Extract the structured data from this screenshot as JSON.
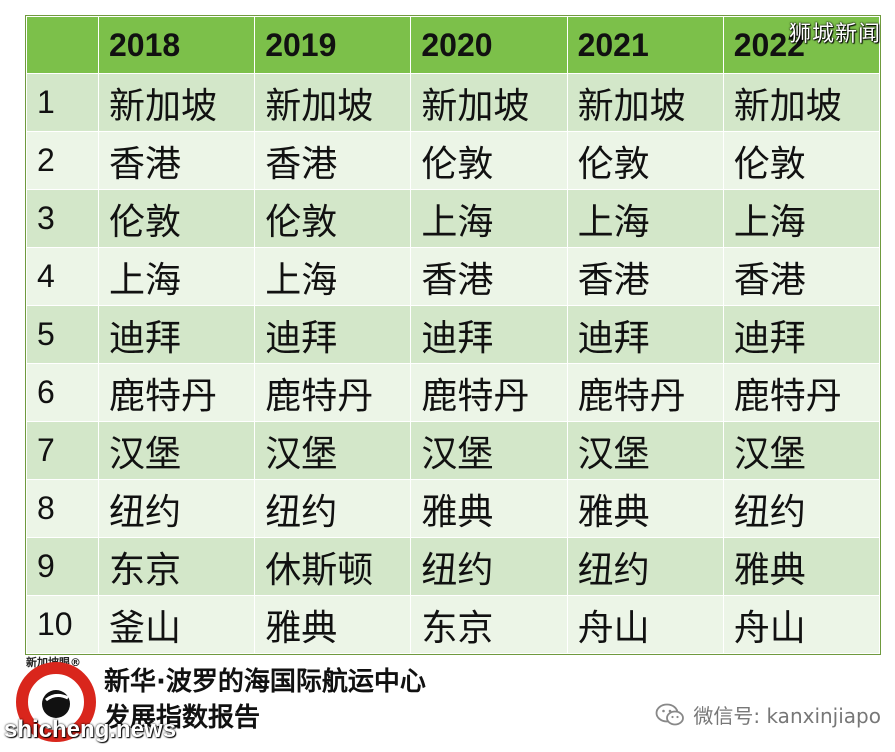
{
  "watermark": "狮城新闻",
  "table": {
    "headers": [
      "",
      "2018",
      "2019",
      "2020",
      "2021",
      "2022"
    ],
    "rows": [
      [
        "1",
        "新加坡",
        "新加坡",
        "新加坡",
        "新加坡",
        "新加坡"
      ],
      [
        "2",
        "香港",
        "香港",
        "伦敦",
        "伦敦",
        "伦敦"
      ],
      [
        "3",
        "伦敦",
        "伦敦",
        "上海",
        "上海",
        "上海"
      ],
      [
        "4",
        "上海",
        "上海",
        "香港",
        "香港",
        "香港"
      ],
      [
        "5",
        "迪拜",
        "迪拜",
        "迪拜",
        "迪拜",
        "迪拜"
      ],
      [
        "6",
        "鹿特丹",
        "鹿特丹",
        "鹿特丹",
        "鹿特丹",
        "鹿特丹"
      ],
      [
        "7",
        "汉堡",
        "汉堡",
        "汉堡",
        "汉堡",
        "汉堡"
      ],
      [
        "8",
        "纽约",
        "纽约",
        "雅典",
        "雅典",
        "纽约"
      ],
      [
        "9",
        "东京",
        "休斯顿",
        "纽约",
        "纽约",
        "雅典"
      ],
      [
        "10",
        "釜山",
        "雅典",
        "东京",
        "舟山",
        "舟山"
      ]
    ]
  },
  "logo_text": "新加坡眼®",
  "title_line1": "新华·波罗的海国际航运中心",
  "title_line2": "发展指数报告",
  "site_mark": "shicheng.news",
  "wechat_label": "微信号: kanxinjiapo",
  "colors": {
    "header_bg": "#7cc04a",
    "row_dark": "#d3e7c9",
    "row_light": "#ecf5e7",
    "logo_red": "#d9261c"
  },
  "icons": {
    "wechat": "wechat-icon",
    "logo": "eye-logo-icon"
  }
}
